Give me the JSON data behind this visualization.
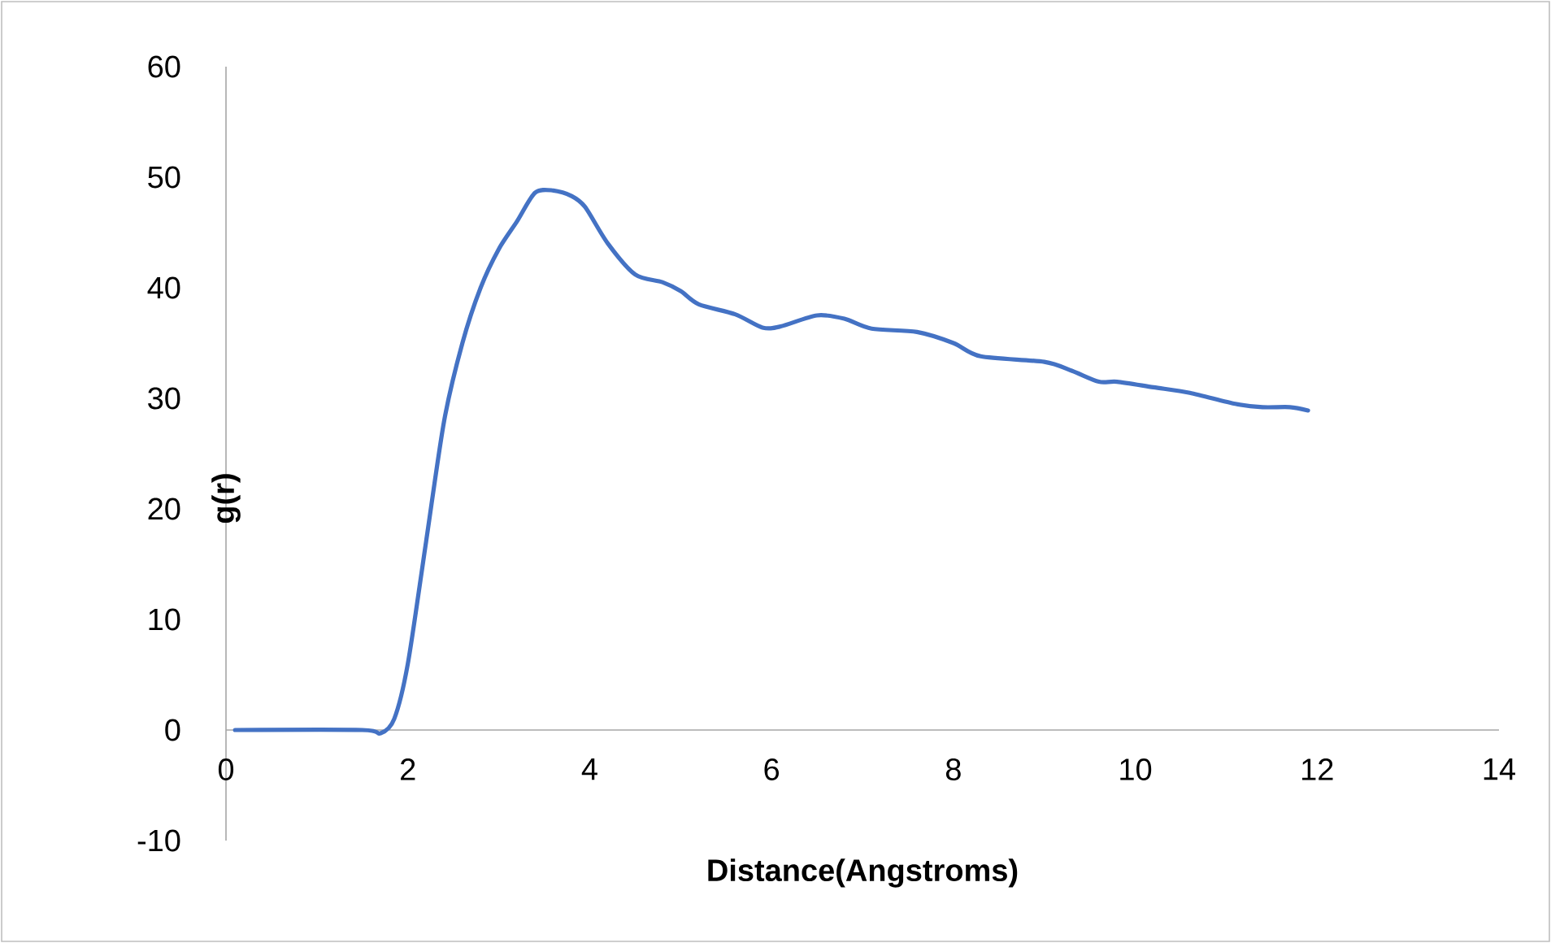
{
  "chart_data": {
    "type": "line",
    "xlabel": "Distance(Angstroms)",
    "ylabel": "g(r)",
    "x": [
      0.1,
      1.5,
      1.7,
      1.85,
      2.0,
      2.2,
      2.4,
      2.6,
      2.8,
      3.0,
      3.2,
      3.4,
      3.6,
      3.8,
      3.95,
      4.2,
      4.5,
      4.8,
      5.0,
      5.2,
      5.6,
      5.9,
      6.1,
      6.5,
      6.8,
      7.1,
      7.6,
      8.0,
      8.3,
      9.0,
      9.3,
      9.6,
      9.8,
      10.2,
      10.6,
      11.1,
      11.4,
      11.7,
      11.9
    ],
    "series": [
      {
        "color": "#4472c4",
        "values": [
          0,
          0,
          -0.3,
          1,
          6,
          17,
          28,
          35,
          40,
          43.5,
          46,
          48.6,
          48.8,
          48.3,
          47.3,
          44,
          41.2,
          40.5,
          39.7,
          38.5,
          37.6,
          36.4,
          36.5,
          37.5,
          37.2,
          36.3,
          36,
          35,
          33.8,
          33.3,
          32.5,
          31.5,
          31.5,
          31,
          30.5,
          29.5,
          29.2,
          29.2,
          28.9
        ]
      }
    ],
    "xlim": [
      0,
      14
    ],
    "xticks": [
      0,
      2,
      4,
      6,
      8,
      10,
      12,
      14
    ],
    "ylim": [
      -10,
      60
    ],
    "yticks": [
      -10,
      0,
      10,
      20,
      30,
      40,
      50,
      60
    ],
    "grid": false,
    "marker": "none",
    "line_style": "solid"
  }
}
